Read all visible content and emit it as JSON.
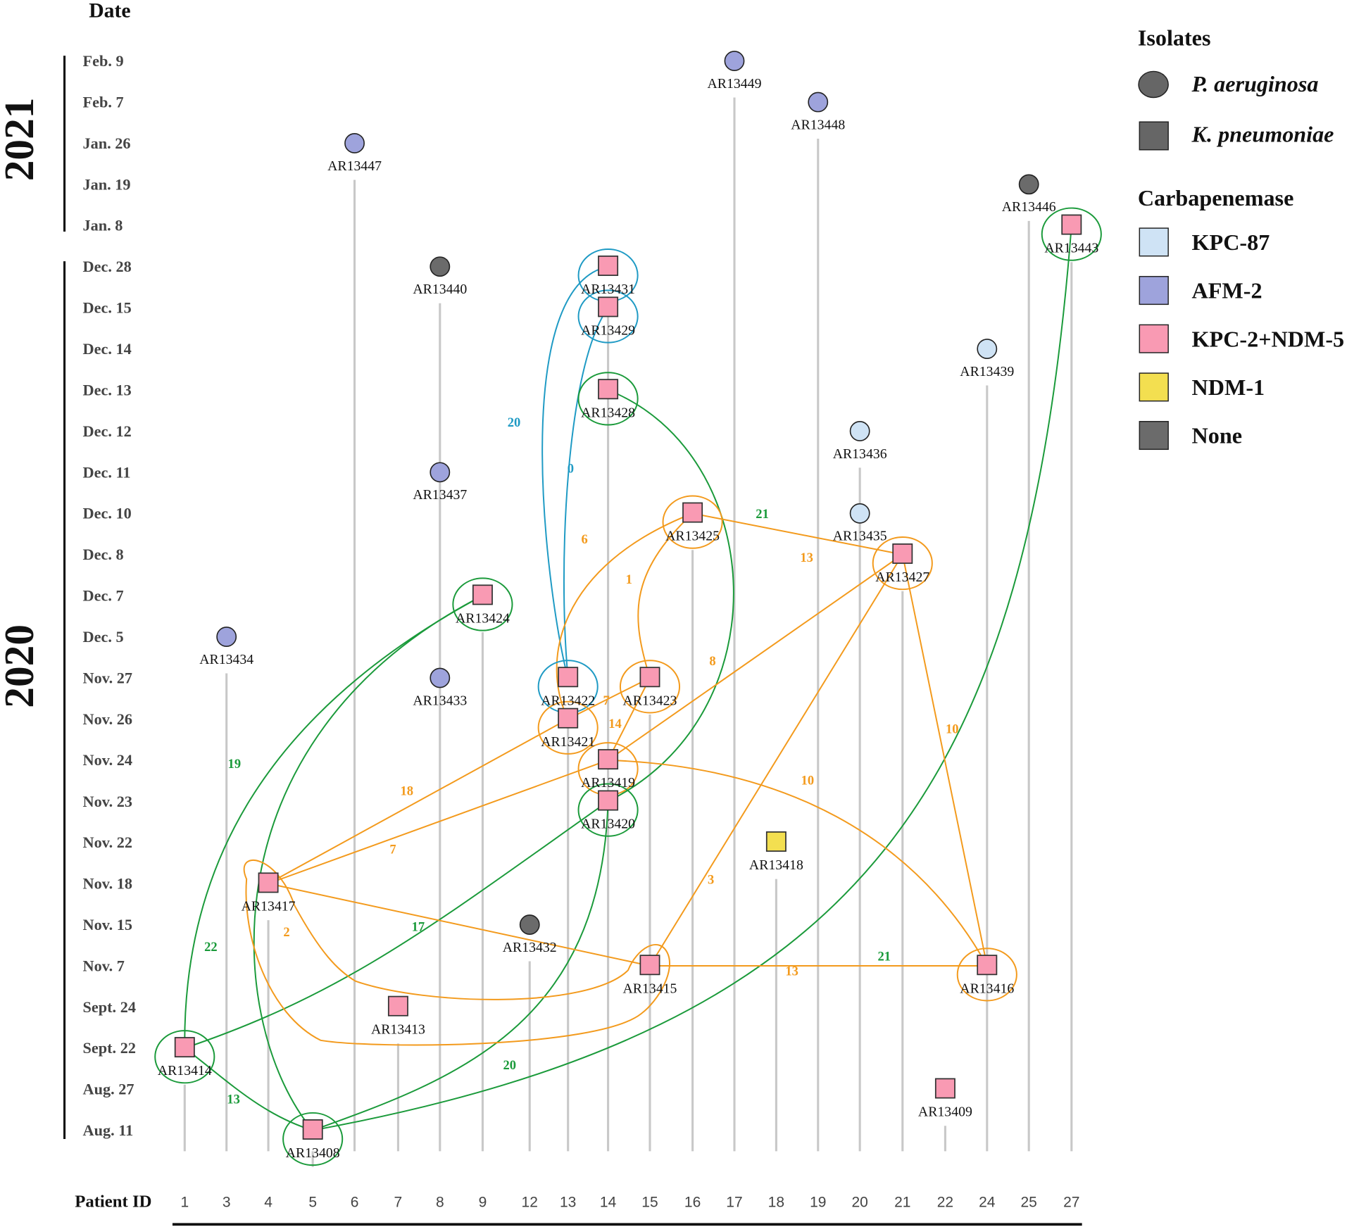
{
  "chart_data": {
    "type": "scatter",
    "title": "",
    "ylabel": "Date",
    "xlabel": "Patient ID",
    "years": [
      {
        "label": "2021",
        "from": "Feb. 9",
        "to": "Jan. 8"
      },
      {
        "label": "2020",
        "from": "Dec. 28",
        "to": "Aug. 11"
      }
    ],
    "dates": [
      "Feb. 9",
      "Feb. 7",
      "Jan. 26",
      "Jan. 19",
      "Jan. 8",
      "Dec. 28",
      "Dec. 15",
      "Dec. 14",
      "Dec. 13",
      "Dec. 12",
      "Dec. 11",
      "Dec. 10",
      "Dec. 8",
      "Dec. 7",
      "Dec. 5",
      "Nov. 27",
      "Nov. 26",
      "Nov. 24",
      "Nov. 23",
      "Nov. 22",
      "Nov. 18",
      "Nov. 15",
      "Nov. 7",
      "Sept. 24",
      "Sept. 22",
      "Aug. 27",
      "Aug. 11"
    ],
    "patients": [
      "1",
      "3",
      "4",
      "5",
      "6",
      "7",
      "8",
      "9",
      "12",
      "13",
      "14",
      "15",
      "16",
      "17",
      "18",
      "19",
      "20",
      "21",
      "22",
      "24",
      "25",
      "27"
    ],
    "legend": {
      "isolates_title": "Isolates",
      "isolates": [
        {
          "shape": "circle",
          "label": "P. aeruginosa"
        },
        {
          "shape": "square",
          "label": "K. pneumoniae"
        }
      ],
      "carbapenemase_title": "Carbapenemase",
      "carbapenemase": [
        {
          "key": "KPC-87",
          "label": "KPC-87",
          "color": "#CFE3F5"
        },
        {
          "key": "AFM-2",
          "label": "AFM-2",
          "color": "#9EA3DC"
        },
        {
          "key": "KPC-2+NDM-5",
          "label": "KPC-2+NDM-5",
          "color": "#F99AB3"
        },
        {
          "key": "NDM-1",
          "label": "NDM-1",
          "color": "#F3DF50"
        },
        {
          "key": "None",
          "label": "None",
          "color": "#6B6B6B"
        }
      ]
    },
    "cluster_colors": {
      "blue": "#1E9AC4",
      "green": "#1A9A3A",
      "orange": "#F39A1C"
    },
    "isolates": [
      {
        "id": "AR13449",
        "patient": "17",
        "date": "Feb. 9",
        "shape": "circle",
        "enzyme": "AFM-2"
      },
      {
        "id": "AR13448",
        "patient": "19",
        "date": "Feb. 7",
        "shape": "circle",
        "enzyme": "AFM-2"
      },
      {
        "id": "AR13447",
        "patient": "6",
        "date": "Jan. 26",
        "shape": "circle",
        "enzyme": "AFM-2"
      },
      {
        "id": "AR13446",
        "patient": "25",
        "date": "Jan. 19",
        "shape": "circle",
        "enzyme": "None"
      },
      {
        "id": "AR13443",
        "patient": "27",
        "date": "Jan. 8",
        "shape": "square",
        "enzyme": "KPC-2+NDM-5",
        "cluster": "green"
      },
      {
        "id": "AR13440",
        "patient": "8",
        "date": "Dec. 28",
        "shape": "circle",
        "enzyme": "None"
      },
      {
        "id": "AR13431",
        "patient": "14",
        "date": "Dec. 28",
        "shape": "square",
        "enzyme": "KPC-2+NDM-5",
        "cluster": "blue"
      },
      {
        "id": "AR13429",
        "patient": "14",
        "date": "Dec. 15",
        "shape": "square",
        "enzyme": "KPC-2+NDM-5",
        "cluster": "blue"
      },
      {
        "id": "AR13439",
        "patient": "24",
        "date": "Dec. 14",
        "shape": "circle",
        "enzyme": "KPC-87"
      },
      {
        "id": "AR13428",
        "patient": "14",
        "date": "Dec. 13",
        "shape": "square",
        "enzyme": "KPC-2+NDM-5",
        "cluster": "green"
      },
      {
        "id": "AR13436",
        "patient": "20",
        "date": "Dec. 12",
        "shape": "circle",
        "enzyme": "KPC-87"
      },
      {
        "id": "AR13437",
        "patient": "8",
        "date": "Dec. 11",
        "shape": "circle",
        "enzyme": "AFM-2"
      },
      {
        "id": "AR13425",
        "patient": "16",
        "date": "Dec. 10",
        "shape": "square",
        "enzyme": "KPC-2+NDM-5",
        "cluster": "orange"
      },
      {
        "id": "AR13435",
        "patient": "20",
        "date": "Dec. 10",
        "shape": "circle",
        "enzyme": "KPC-87"
      },
      {
        "id": "AR13427",
        "patient": "21",
        "date": "Dec. 8",
        "shape": "square",
        "enzyme": "KPC-2+NDM-5",
        "cluster": "orange"
      },
      {
        "id": "AR13424",
        "patient": "9",
        "date": "Dec. 7",
        "shape": "square",
        "enzyme": "KPC-2+NDM-5",
        "cluster": "green"
      },
      {
        "id": "AR13434",
        "patient": "3",
        "date": "Dec. 5",
        "shape": "circle",
        "enzyme": "AFM-2"
      },
      {
        "id": "AR13422",
        "patient": "13",
        "date": "Nov. 27",
        "shape": "square",
        "enzyme": "KPC-2+NDM-5",
        "cluster": "blue"
      },
      {
        "id": "AR13423",
        "patient": "15",
        "date": "Nov. 27",
        "shape": "square",
        "enzyme": "KPC-2+NDM-5",
        "cluster": "orange"
      },
      {
        "id": "AR13433",
        "patient": "8",
        "date": "Nov. 27",
        "shape": "circle",
        "enzyme": "AFM-2"
      },
      {
        "id": "AR13421",
        "patient": "13",
        "date": "Nov. 26",
        "shape": "square",
        "enzyme": "KPC-2+NDM-5",
        "cluster": "orange"
      },
      {
        "id": "AR13419",
        "patient": "14",
        "date": "Nov. 24",
        "shape": "square",
        "enzyme": "KPC-2+NDM-5",
        "cluster": "orange"
      },
      {
        "id": "AR13420",
        "patient": "14",
        "date": "Nov. 23",
        "shape": "square",
        "enzyme": "KPC-2+NDM-5",
        "cluster": "green"
      },
      {
        "id": "AR13418",
        "patient": "18",
        "date": "Nov. 22",
        "shape": "square",
        "enzyme": "NDM-1"
      },
      {
        "id": "AR13417",
        "patient": "4",
        "date": "Nov. 18",
        "shape": "square",
        "enzyme": "KPC-2+NDM-5",
        "cluster": "orange-blob"
      },
      {
        "id": "AR13432",
        "patient": "12",
        "date": "Nov. 15",
        "shape": "circle",
        "enzyme": "None"
      },
      {
        "id": "AR13415",
        "patient": "15",
        "date": "Nov. 7",
        "shape": "square",
        "enzyme": "KPC-2+NDM-5",
        "cluster": "orange-blob"
      },
      {
        "id": "AR13416",
        "patient": "24",
        "date": "Nov. 7",
        "shape": "square",
        "enzyme": "KPC-2+NDM-5",
        "cluster": "orange"
      },
      {
        "id": "AR13413",
        "patient": "7",
        "date": "Sept. 24",
        "shape": "square",
        "enzyme": "KPC-2+NDM-5"
      },
      {
        "id": "AR13414",
        "patient": "1",
        "date": "Sept. 22",
        "shape": "square",
        "enzyme": "KPC-2+NDM-5",
        "cluster": "green"
      },
      {
        "id": "AR13409",
        "patient": "22",
        "date": "Aug. 27",
        "shape": "square",
        "enzyme": "KPC-2+NDM-5"
      },
      {
        "id": "AR13408",
        "patient": "5",
        "date": "Aug. 11",
        "shape": "square",
        "enzyme": "KPC-2+NDM-5",
        "cluster": "green"
      }
    ],
    "links": [
      {
        "from": "AR13431",
        "to": "AR13422",
        "snps": 20,
        "color": "blue"
      },
      {
        "from": "AR13429",
        "to": "AR13422",
        "snps": 0,
        "color": "blue"
      },
      {
        "from": "AR13428",
        "to": "AR13420",
        "snps": 21,
        "color": "green"
      },
      {
        "from": "AR13424",
        "to": "AR13414",
        "snps": 19,
        "color": "green"
      },
      {
        "from": "AR13424",
        "to": "AR13408",
        "snps": 22,
        "color": "green"
      },
      {
        "from": "AR13420",
        "to": "AR13414",
        "snps": 17,
        "color": "green"
      },
      {
        "from": "AR13420",
        "to": "AR13408",
        "snps": 20,
        "color": "green"
      },
      {
        "from": "AR13414",
        "to": "AR13408",
        "snps": 13,
        "color": "green"
      },
      {
        "from": "AR13443",
        "to": "AR13408",
        "snps": 21,
        "color": "green"
      },
      {
        "from": "AR13425",
        "to": "AR13421",
        "snps": 6,
        "color": "orange"
      },
      {
        "from": "AR13425",
        "to": "AR13423",
        "snps": 1,
        "color": "orange"
      },
      {
        "from": "AR13425",
        "to": "AR13427",
        "snps": 13,
        "color": "orange"
      },
      {
        "from": "AR13427",
        "to": "AR13419",
        "snps": 8,
        "color": "orange"
      },
      {
        "from": "AR13427",
        "to": "AR13415",
        "snps": 3,
        "color": "orange"
      },
      {
        "from": "AR13427",
        "to": "AR13416",
        "snps": 10,
        "color": "orange"
      },
      {
        "from": "AR13423",
        "to": "AR13421",
        "snps": 7,
        "color": "orange"
      },
      {
        "from": "AR13423",
        "to": "AR13419",
        "snps": 14,
        "color": "orange"
      },
      {
        "from": "AR13421",
        "to": "AR13417",
        "snps": 18,
        "color": "orange"
      },
      {
        "from": "AR13419",
        "to": "AR13417",
        "snps": 7,
        "color": "orange"
      },
      {
        "from": "AR13419",
        "to": "AR13416",
        "snps": 10,
        "color": "orange"
      },
      {
        "from": "AR13417",
        "to": "AR13415",
        "snps": 2,
        "color": "orange"
      },
      {
        "from": "AR13415",
        "to": "AR13416",
        "snps": 13,
        "color": "orange"
      }
    ]
  }
}
